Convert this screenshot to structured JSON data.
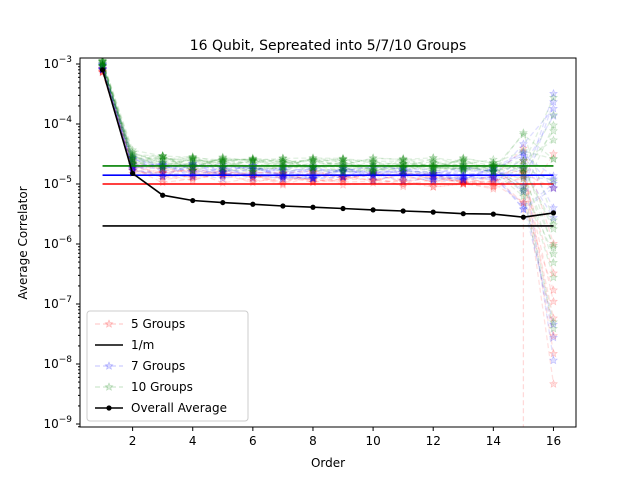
{
  "chart_data": {
    "type": "line",
    "title": "16 Qubit, Sepreated into 5/7/10 Groups",
    "xlabel": "Order",
    "ylabel": "Average Correlator",
    "xlim": [
      0.25,
      16.75
    ],
    "ylim_log10": [
      -9.05,
      -2.9
    ],
    "yscale": "log",
    "grid": false,
    "legend_placement": "lower-left",
    "x_ticks": [
      2,
      4,
      6,
      8,
      10,
      12,
      14,
      16
    ],
    "x_tick_labels": [
      "2",
      "4",
      "6",
      "8",
      "10",
      "12",
      "14",
      "16"
    ],
    "y_ticks": [
      1e-09,
      1e-08,
      1e-07,
      1e-06,
      1e-05,
      0.0001,
      0.001
    ],
    "y_tick_labels": [
      "10−9",
      "10−8",
      "10−7",
      "10−6",
      "10−5",
      "10−4",
      "10−3"
    ],
    "x": [
      1,
      2,
      3,
      4,
      5,
      6,
      7,
      8,
      9,
      10,
      11,
      12,
      13,
      14,
      15,
      16
    ],
    "series": [
      {
        "name": "5 Groups",
        "color": "#ff0000",
        "style": "dashed-star-faint",
        "mean_values": [
          0.0008,
          1.9e-05,
          1.4e-05,
          1.35e-05,
          1.3e-05,
          1.3e-05,
          1.28e-05,
          1.25e-05,
          1.22e-05,
          1.2e-05,
          1.2e-05,
          1.18e-05,
          1.15e-05,
          1.1e-05,
          1e-05,
          1e-05
        ],
        "hline": 1e-05
      },
      {
        "name": "1/m",
        "color": "#000000",
        "style": "solid-line",
        "x": [
          1,
          16
        ],
        "values": [
          2e-06,
          2e-06
        ]
      },
      {
        "name": "7 Groups",
        "color": "#0000ff",
        "style": "dashed-star-faint",
        "mean_values": [
          0.0009,
          2.2e-05,
          1.7e-05,
          1.65e-05,
          1.6e-05,
          1.6e-05,
          1.58e-05,
          1.55e-05,
          1.52e-05,
          1.5e-05,
          1.5e-05,
          1.5e-05,
          1.48e-05,
          1.45e-05,
          1.4e-05,
          1.4e-05
        ],
        "hline": 1.4e-05
      },
      {
        "name": "10 Groups",
        "color": "#008000",
        "style": "dashed-star-faint",
        "mean_values": [
          0.001,
          2.8e-05,
          2.3e-05,
          2.2e-05,
          2.15e-05,
          2.1e-05,
          2.1e-05,
          2.08e-05,
          2.05e-05,
          2.05e-05,
          2.05e-05,
          2.05e-05,
          2.05e-05,
          2.05e-05,
          2e-05,
          2e-05
        ],
        "hline": 2e-05
      },
      {
        "name": "Overall Average",
        "color": "#000000",
        "style": "solid-dot",
        "values": [
          0.0008,
          1.5e-05,
          6.5e-06,
          5.3e-06,
          4.9e-06,
          4.6e-06,
          4.3e-06,
          4.1e-06,
          3.9e-06,
          3.7e-06,
          3.55e-06,
          3.4e-06,
          3.2e-06,
          3.15e-06,
          2.8e-06,
          3.3e-06
        ]
      }
    ]
  }
}
